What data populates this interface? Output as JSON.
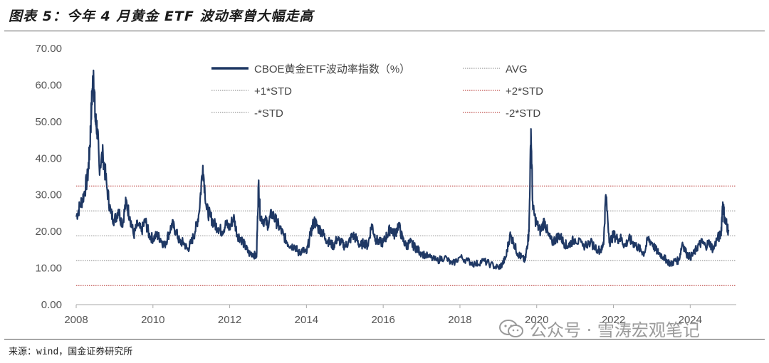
{
  "header": {
    "title": "图表 5：今年 4 月黄金 ETF 波动率曾大幅走高"
  },
  "footer": {
    "source": "来源：wind，国金证券研究所",
    "watermark": "公众号 · 雪涛宏观笔记"
  },
  "colors": {
    "series": "#1f3864",
    "avg": "#9a9a9a",
    "std1": "#9a9a9a",
    "std2": "#c0504d"
  },
  "chart_data": {
    "type": "line",
    "title": "",
    "xlabel": "",
    "ylabel": "",
    "xlim": [
      2008,
      2025.2
    ],
    "ylim": [
      0,
      70
    ],
    "x_ticks": [
      "2008",
      "2010",
      "2012",
      "2014",
      "2016",
      "2018",
      "2020",
      "2022",
      "2024"
    ],
    "y_ticks": [
      "0.00",
      "10.00",
      "20.00",
      "30.00",
      "40.00",
      "50.00",
      "60.00",
      "70.00"
    ],
    "legend_position": "top",
    "series": [
      {
        "name": "CBOE黄金ETF波动率指数（%）",
        "x": [
          2008.0,
          2008.1,
          2008.2,
          2008.3,
          2008.35,
          2008.4,
          2008.45,
          2008.5,
          2008.55,
          2008.6,
          2008.7,
          2008.8,
          2008.9,
          2009.0,
          2009.1,
          2009.2,
          2009.3,
          2009.4,
          2009.5,
          2009.6,
          2009.7,
          2009.8,
          2009.9,
          2010.0,
          2010.1,
          2010.2,
          2010.3,
          2010.4,
          2010.5,
          2010.6,
          2010.7,
          2010.8,
          2010.9,
          2011.0,
          2011.1,
          2011.2,
          2011.3,
          2011.4,
          2011.5,
          2011.6,
          2011.7,
          2011.8,
          2011.9,
          2012.0,
          2012.1,
          2012.2,
          2012.3,
          2012.4,
          2012.5,
          2012.6,
          2012.7,
          2012.75,
          2012.8,
          2012.9,
          2013.0,
          2013.1,
          2013.2,
          2013.3,
          2013.4,
          2013.5,
          2013.6,
          2013.7,
          2013.8,
          2013.9,
          2014.0,
          2014.1,
          2014.2,
          2014.3,
          2014.4,
          2014.5,
          2014.6,
          2014.7,
          2014.8,
          2014.9,
          2015.0,
          2015.1,
          2015.2,
          2015.3,
          2015.4,
          2015.5,
          2015.6,
          2015.7,
          2015.8,
          2015.9,
          2016.0,
          2016.1,
          2016.2,
          2016.3,
          2016.4,
          2016.5,
          2016.6,
          2016.7,
          2016.8,
          2016.9,
          2017.0,
          2017.2,
          2017.4,
          2017.6,
          2017.8,
          2018.0,
          2018.2,
          2018.4,
          2018.6,
          2018.8,
          2019.0,
          2019.1,
          2019.2,
          2019.3,
          2019.4,
          2019.5,
          2019.6,
          2019.7,
          2019.75,
          2019.8,
          2019.85,
          2019.9,
          2020.0,
          2020.1,
          2020.2,
          2020.3,
          2020.4,
          2020.5,
          2020.6,
          2020.7,
          2020.8,
          2020.9,
          2021.0,
          2021.2,
          2021.4,
          2021.6,
          2021.7,
          2021.75,
          2021.8,
          2021.9,
          2022.0,
          2022.1,
          2022.2,
          2022.3,
          2022.4,
          2022.5,
          2022.6,
          2022.7,
          2022.8,
          2022.9,
          2023.0,
          2023.1,
          2023.2,
          2023.3,
          2023.4,
          2023.5,
          2023.6,
          2023.7,
          2023.8,
          2023.9,
          2024.0,
          2024.1,
          2024.2,
          2024.3,
          2024.4,
          2024.5,
          2024.6,
          2024.7,
          2024.8,
          2024.85,
          2024.9,
          2024.95,
          2025.0
        ],
        "y": [
          24,
          27,
          30,
          35,
          42,
          54,
          64,
          50,
          48,
          38,
          41,
          32,
          25,
          23,
          26,
          22,
          28,
          24,
          19,
          22,
          20,
          23,
          19,
          18,
          19,
          18,
          16,
          19,
          22,
          20,
          17,
          17,
          15,
          17,
          20,
          25,
          38,
          26,
          24,
          22,
          21,
          20,
          22,
          21,
          24,
          19,
          18,
          16,
          14,
          14,
          13,
          33,
          24,
          23,
          22,
          25,
          23,
          21,
          19,
          17,
          16,
          16,
          14,
          15,
          14,
          19,
          23,
          21,
          20,
          18,
          17,
          16,
          18,
          17,
          16,
          17,
          19,
          18,
          16,
          17,
          16,
          22,
          18,
          17,
          17,
          19,
          21,
          19,
          22,
          18,
          16,
          17,
          16,
          15,
          14,
          13,
          12,
          13,
          11,
          13,
          12,
          11,
          12,
          11,
          10,
          11,
          13,
          19,
          17,
          14,
          13,
          12,
          16,
          20,
          48,
          26,
          22,
          20,
          23,
          19,
          17,
          18,
          19,
          17,
          16,
          17,
          18,
          16,
          17,
          15,
          15,
          18,
          30,
          17,
          19,
          18,
          18,
          16,
          18,
          17,
          16,
          15,
          14,
          18,
          17,
          15,
          14,
          13,
          12,
          11,
          12,
          12,
          17,
          14,
          13,
          14,
          16,
          17,
          16,
          17,
          15,
          18,
          19,
          28,
          23,
          22,
          20
        ]
      },
      {
        "name": "AVG",
        "value": 18.8
      },
      {
        "name": "+1*STD",
        "value": 25.6
      },
      {
        "name": "-*STD",
        "value": 12.0
      },
      {
        "name": "+2*STD",
        "value": 32.4
      },
      {
        "name": "-2*STD",
        "value": 5.2
      }
    ]
  }
}
